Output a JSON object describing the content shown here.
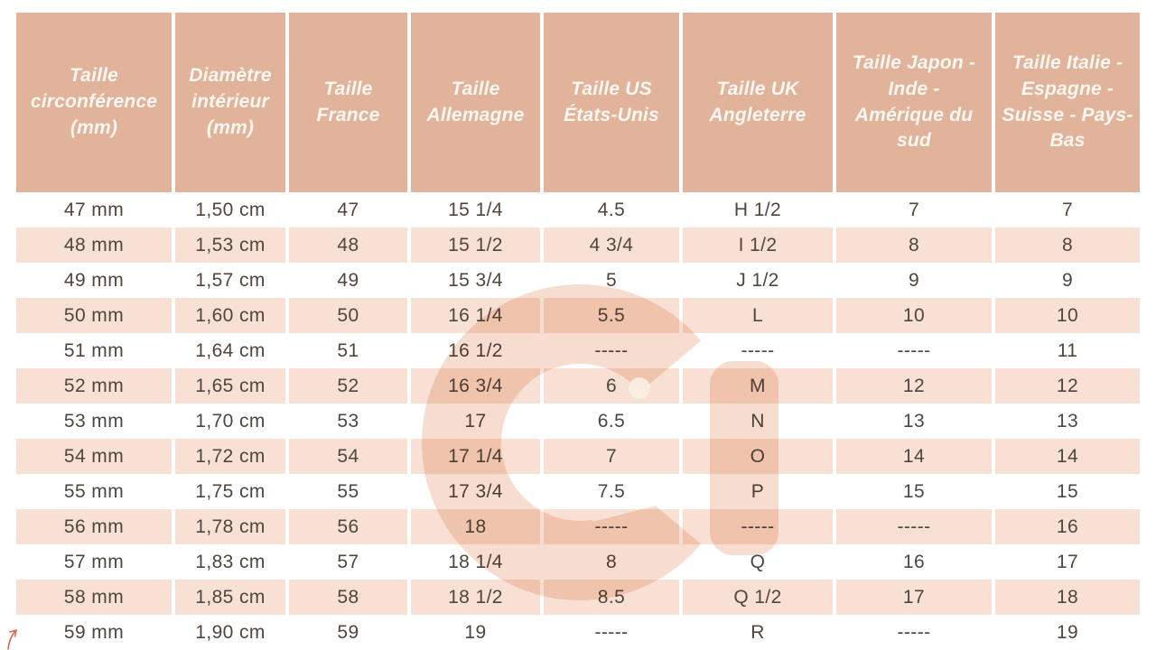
{
  "chart_data": {
    "type": "table",
    "columns": [
      "Taille circonférence (mm)",
      "Diamètre intérieur (mm)",
      "Taille France",
      "Taille Allemagne",
      "Taille US États-Unis",
      "Taille UK Angleterre",
      "Taille Japon - Inde - Amérique du sud",
      "Taille Italie - Espagne - Suisse - Pays-Bas"
    ],
    "rows": [
      [
        "47 mm",
        "1,50 cm",
        "47",
        "15 1/4",
        "4.5",
        "H 1/2",
        "7",
        "7"
      ],
      [
        "48 mm",
        "1,53 cm",
        "48",
        "15 1/2",
        "4 3/4",
        "I 1/2",
        "8",
        "8"
      ],
      [
        "49 mm",
        "1,57 cm",
        "49",
        "15 3/4",
        "5",
        "J 1/2",
        "9",
        "9"
      ],
      [
        "50 mm",
        "1,60 cm",
        "50",
        "16 1/4",
        "5.5",
        "L",
        "10",
        "10"
      ],
      [
        "51 mm",
        "1,64 cm",
        "51",
        "16 1/2",
        "-----",
        "-----",
        "-----",
        "11"
      ],
      [
        "52 mm",
        "1,65 cm",
        "52",
        "16 3/4",
        "6",
        "M",
        "12",
        "12"
      ],
      [
        "53 mm",
        "1,70 cm",
        "53",
        "17",
        "6.5",
        "N",
        "13",
        "13"
      ],
      [
        "54 mm",
        "1,72 cm",
        "54",
        "17 1/4",
        "7",
        "O",
        "14",
        "14"
      ],
      [
        "55 mm",
        "1,75 cm",
        "55",
        "17 3/4",
        "7.5",
        "P",
        "15",
        "15"
      ],
      [
        "56 mm",
        "1,78 cm",
        "56",
        "18",
        "-----",
        "-----",
        "-----",
        "16"
      ],
      [
        "57 mm",
        "1,83 cm",
        "57",
        "18 1/4",
        "8",
        "Q",
        "16",
        "17"
      ],
      [
        "58 mm",
        "1,85 cm",
        "58",
        "18 1/2",
        "8.5",
        "Q 1/2",
        "17",
        "18"
      ],
      [
        "59 mm",
        "1,90 cm",
        "59",
        "19",
        "-----",
        "R",
        "-----",
        "19"
      ]
    ],
    "grid": "alternating-row-bands",
    "legend_position": "none"
  },
  "colors": {
    "header_bg": "#e2b39b",
    "header_text": "#fcf7f0",
    "row_alt_bg": "#f8e1d4",
    "row_bg": "#ffffff",
    "body_text": "#4f463e",
    "watermark": "#f7ddd0",
    "watermark_dot": "#faeee3",
    "arrow": "#dd6952"
  },
  "watermark": {
    "icon": "g-logo-watermark"
  }
}
